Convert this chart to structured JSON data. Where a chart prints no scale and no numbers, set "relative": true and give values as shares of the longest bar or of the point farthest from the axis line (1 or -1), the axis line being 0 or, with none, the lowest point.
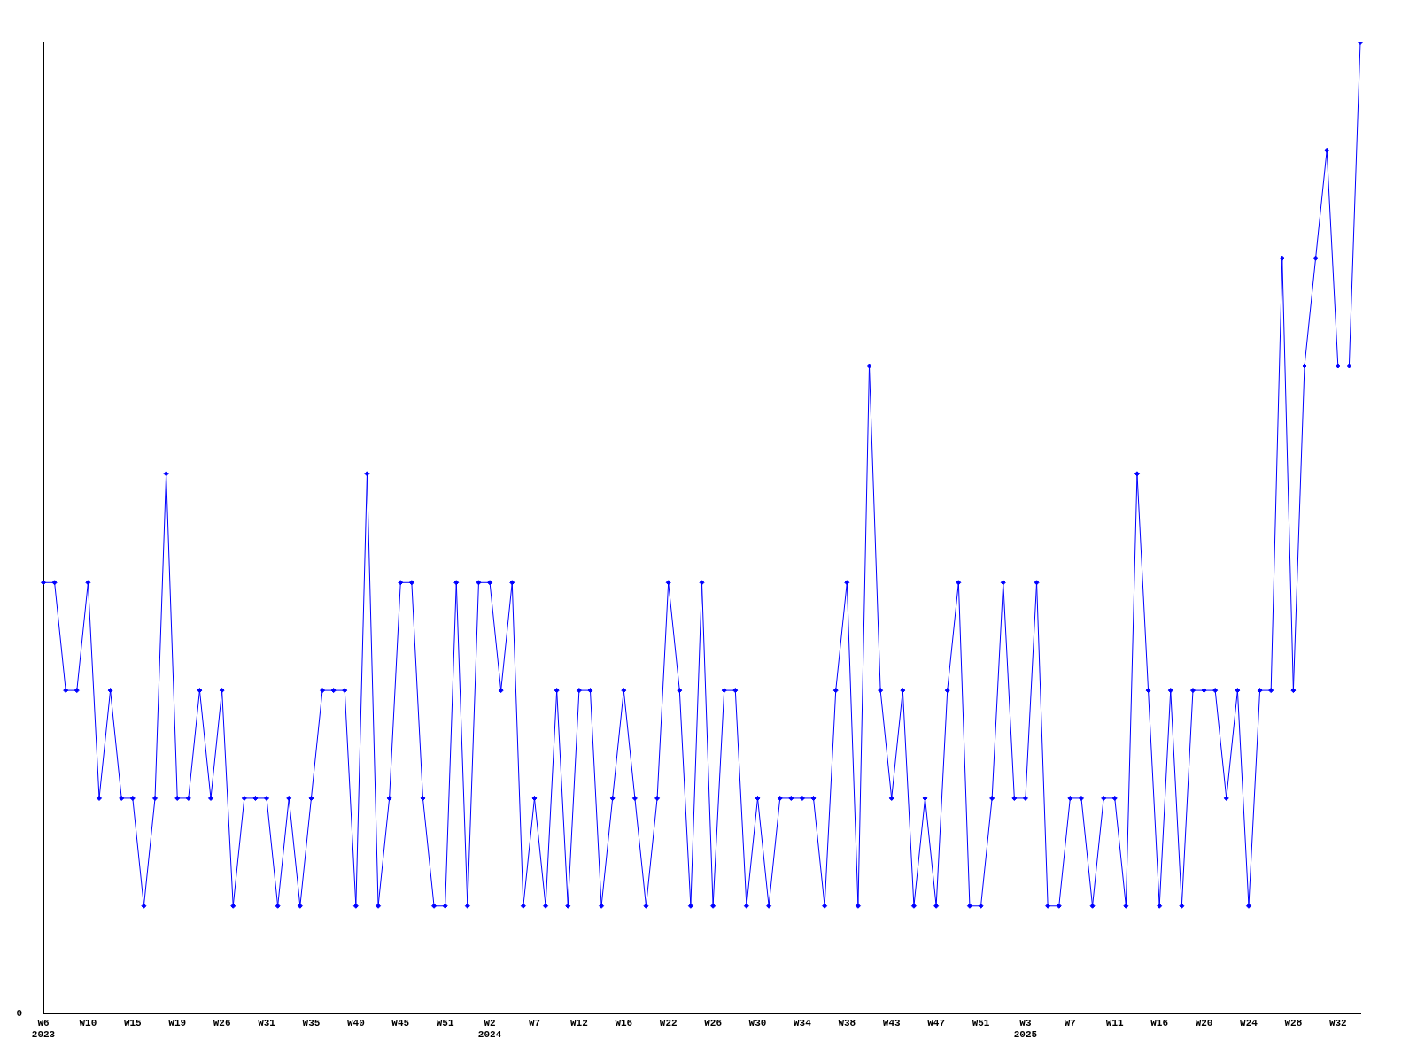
{
  "chart_data": {
    "type": "line",
    "relative": true,
    "marker": "diamond",
    "color": "#0000ff",
    "categories": [
      "W6\n2023",
      null,
      null,
      null,
      "W10",
      null,
      null,
      null,
      "W15",
      null,
      null,
      null,
      "W19",
      null,
      null,
      null,
      "W26",
      null,
      null,
      null,
      "W31",
      null,
      null,
      null,
      "W35",
      null,
      null,
      null,
      "W40",
      null,
      null,
      null,
      "W45",
      null,
      null,
      null,
      "W51",
      null,
      null,
      null,
      "W2\n2024",
      null,
      null,
      null,
      "W7",
      null,
      null,
      null,
      "W12",
      null,
      null,
      null,
      "W16",
      null,
      null,
      null,
      "W22",
      null,
      null,
      null,
      "W26",
      null,
      null,
      null,
      "W30",
      null,
      null,
      null,
      "W34",
      null,
      null,
      null,
      "W38",
      null,
      null,
      null,
      "W43",
      null,
      null,
      null,
      "W47",
      null,
      null,
      null,
      "W51",
      null,
      null,
      null,
      "W3\n2025",
      null,
      null,
      null,
      "W7",
      null,
      null,
      null,
      "W11",
      null,
      null,
      null,
      "W16",
      null,
      null,
      null,
      "W20",
      null,
      null,
      null,
      "W24",
      null,
      null,
      null,
      "W28",
      null,
      null,
      null,
      "W32",
      null,
      null
    ],
    "values": [
      0.444,
      0.444,
      0.333,
      0.333,
      0.444,
      0.222,
      0.333,
      0.222,
      0.222,
      0.111,
      0.222,
      0.556,
      0.222,
      0.222,
      0.333,
      0.222,
      0.333,
      0.111,
      0.222,
      0.222,
      0.222,
      0.111,
      0.222,
      0.111,
      0.222,
      0.333,
      0.333,
      0.333,
      0.111,
      0.556,
      0.111,
      0.222,
      0.444,
      0.444,
      0.222,
      0.111,
      0.111,
      0.444,
      0.111,
      0.444,
      0.444,
      0.333,
      0.444,
      0.111,
      0.222,
      0.111,
      0.333,
      0.111,
      0.333,
      0.333,
      0.111,
      0.222,
      0.333,
      0.222,
      0.111,
      0.222,
      0.444,
      0.333,
      0.111,
      0.444,
      0.111,
      0.333,
      0.333,
      0.111,
      0.222,
      0.111,
      0.222,
      0.222,
      0.222,
      0.222,
      0.111,
      0.333,
      0.444,
      0.111,
      0.667,
      0.333,
      0.222,
      0.333,
      0.111,
      0.222,
      0.111,
      0.333,
      0.444,
      0.111,
      0.111,
      0.222,
      0.444,
      0.222,
      0.222,
      0.444,
      0.111,
      0.111,
      0.222,
      0.222,
      0.111,
      0.222,
      0.222,
      0.111,
      0.556,
      0.333,
      0.111,
      0.333,
      0.111,
      0.333,
      0.333,
      0.333,
      0.222,
      0.333,
      0.111,
      0.333,
      0.333,
      0.778,
      0.333,
      0.667,
      0.778,
      0.889,
      0.667,
      0.667,
      1
    ],
    "annotations": [
      "0"
    ]
  }
}
